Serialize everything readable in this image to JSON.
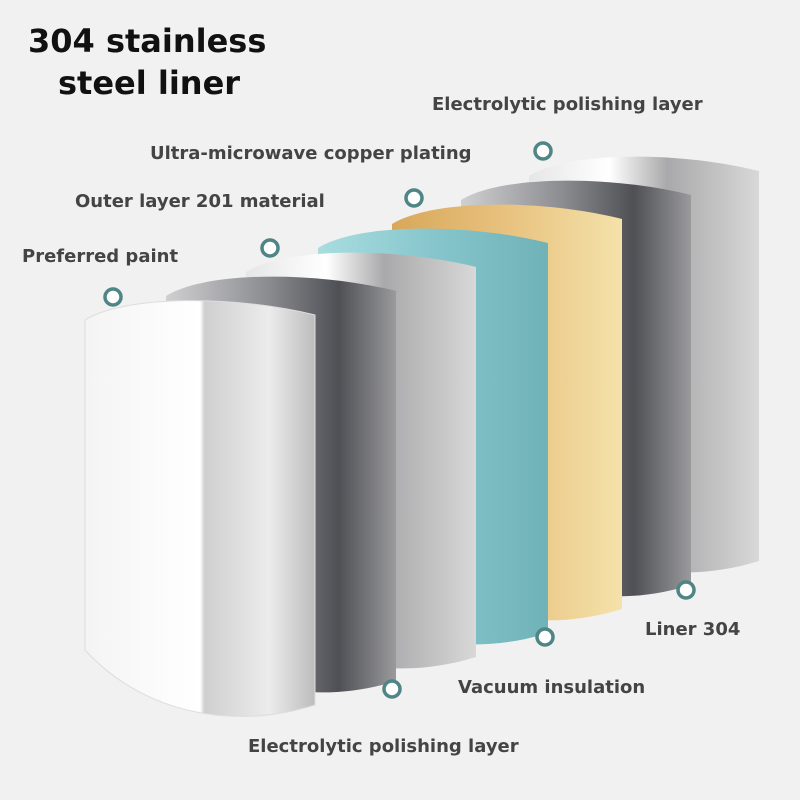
{
  "title": {
    "lines": [
      "304 stainless",
      "steel liner"
    ]
  },
  "labels": [
    {
      "text": "Electrolytic polishing layer"
    },
    {
      "text": "Ultra-microwave copper plating"
    },
    {
      "text": "Outer layer 201 material"
    },
    {
      "text": "Preferred paint"
    },
    {
      "text": "Liner 304"
    },
    {
      "text": "Vacuum insulation"
    },
    {
      "text": "Electrolytic polishing layer"
    }
  ]
}
